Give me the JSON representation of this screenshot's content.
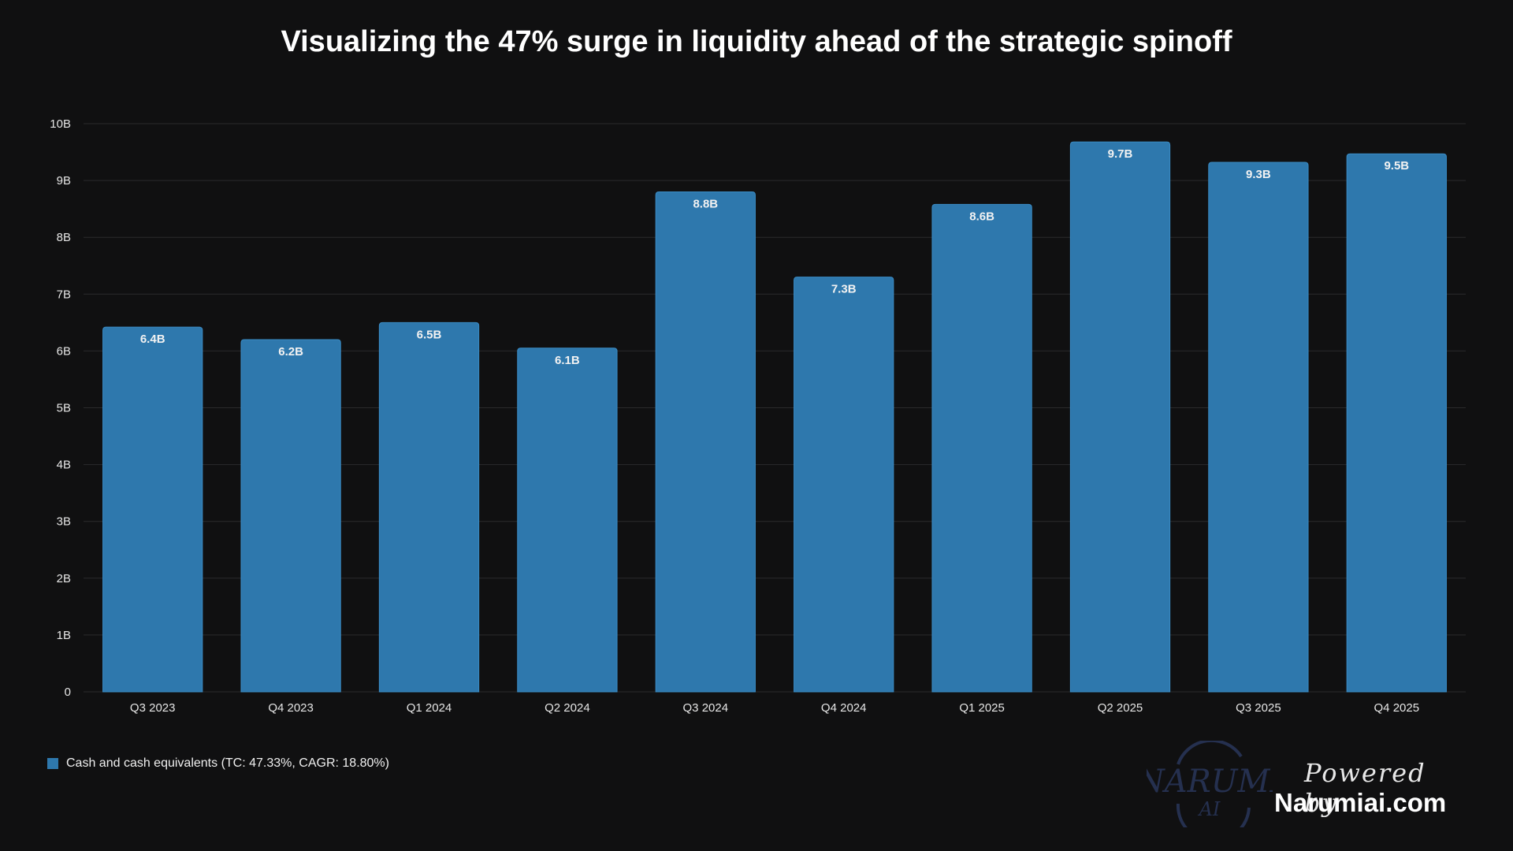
{
  "title": "Visualizing the 47% surge in liquidity ahead of the strategic spinoff",
  "chart_data": {
    "type": "bar",
    "title": "Visualizing the 47% surge in liquidity ahead of the strategic spinoff",
    "categories": [
      "Q3 2023",
      "Q4 2023",
      "Q1 2024",
      "Q2 2024",
      "Q3 2024",
      "Q4 2024",
      "Q1 2025",
      "Q2 2025",
      "Q3 2025",
      "Q4 2025"
    ],
    "series": [
      {
        "name": "Cash and cash equivalents (TC: 47.33%, CAGR: 18.80%)",
        "values": [
          6.42,
          6.2,
          6.5,
          6.05,
          8.8,
          7.3,
          8.58,
          9.68,
          9.32,
          9.47
        ],
        "labels": [
          "6.4B",
          "6.2B",
          "6.5B",
          "6.1B",
          "8.8B",
          "7.3B",
          "8.6B",
          "9.7B",
          "9.3B",
          "9.5B"
        ],
        "color": "#2e78ad"
      }
    ],
    "y_ticks": [
      "0",
      "1B",
      "2B",
      "3B",
      "4B",
      "5B",
      "6B",
      "7B",
      "8B",
      "9B",
      "10B"
    ],
    "ylim": [
      0,
      10
    ],
    "unit": "B",
    "grid": true,
    "legend_position": "bottom-left"
  },
  "branding": {
    "logo_text": "NARUMI",
    "logo_sub": "AI",
    "powered_by": "Powered by",
    "site": "Narumiai.com"
  },
  "colors": {
    "background": "#101011",
    "bar": "#2e78ad",
    "bar_edge": "#3a8bc4",
    "grid": "#2a2a2c",
    "logo": "#25304f"
  }
}
